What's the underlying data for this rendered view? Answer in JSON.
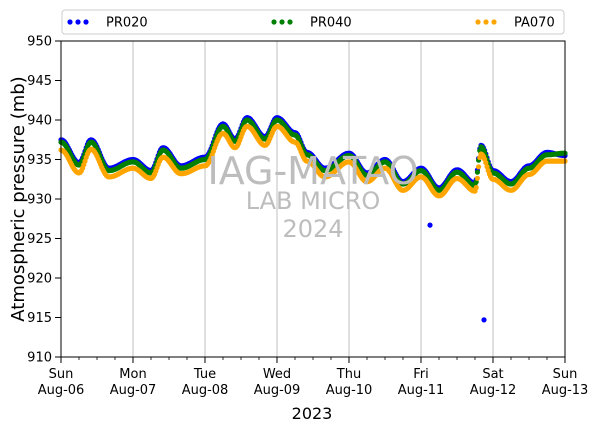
{
  "chart_data": {
    "type": "scatter",
    "xlabel": "2023",
    "ylabel": "Atmospheric pressure (mb)",
    "ylim": [
      910,
      950
    ],
    "xlim": [
      "2023-08-06",
      "2023-08-13"
    ],
    "y_ticks": [
      910,
      915,
      920,
      925,
      930,
      935,
      940,
      945,
      950
    ],
    "x_ticks": [
      {
        "day": "Sun",
        "date": "Aug-06"
      },
      {
        "day": "Mon",
        "date": "Aug-07"
      },
      {
        "day": "Tue",
        "date": "Aug-08"
      },
      {
        "day": "Wed",
        "date": "Aug-09"
      },
      {
        "day": "Thu",
        "date": "Aug-10"
      },
      {
        "day": "Fri",
        "date": "Aug-11"
      },
      {
        "day": "Sat",
        "date": "Aug-12"
      },
      {
        "day": "Sun",
        "date": "Aug-13"
      }
    ],
    "grid": "vertical",
    "legend_position": "top",
    "watermark": [
      "IAG-MATAO",
      "LAB MICRO",
      "2024"
    ],
    "series": [
      {
        "name": "PR020",
        "color": "#0000ff",
        "x": [
          "2023-08-06 00:00",
          "2023-08-06 06:00",
          "2023-08-06 10:00",
          "2023-08-06 16:00",
          "2023-08-07 00:00",
          "2023-08-07 06:00",
          "2023-08-07 10:00",
          "2023-08-07 16:00",
          "2023-08-08 00:00",
          "2023-08-08 06:00",
          "2023-08-08 10:00",
          "2023-08-08 14:00",
          "2023-08-08 20:00",
          "2023-08-09 00:00",
          "2023-08-09 06:00",
          "2023-08-09 10:00",
          "2023-08-09 16:00",
          "2023-08-10 00:00",
          "2023-08-10 06:00",
          "2023-08-10 12:00",
          "2023-08-10 18:00",
          "2023-08-11 00:00",
          "2023-08-11 06:00",
          "2023-08-11 12:00",
          "2023-08-11 18:00",
          "2023-08-11 20:00",
          "2023-08-12 00:00",
          "2023-08-12 06:00",
          "2023-08-12 12:00",
          "2023-08-12 18:00",
          "2023-08-13 00:00"
        ],
        "y": [
          937.5,
          934.6,
          937.5,
          933.9,
          935.0,
          933.6,
          936.5,
          934.2,
          935.3,
          939.5,
          937.6,
          940.3,
          937.9,
          940.3,
          938.4,
          935.9,
          933.9,
          935.8,
          933.3,
          935.0,
          932.2,
          933.9,
          931.4,
          933.7,
          932.0,
          936.8,
          933.6,
          932.2,
          934.2,
          935.9,
          935.5
        ],
        "outliers": [
          {
            "x": "2023-08-11 03:00",
            "y": 926.7
          },
          {
            "x": "2023-08-11 21:00",
            "y": 914.7
          }
        ]
      },
      {
        "name": "PR040",
        "color": "#008000",
        "x": [
          "2023-08-06 00:00",
          "2023-08-06 06:00",
          "2023-08-06 10:00",
          "2023-08-06 16:00",
          "2023-08-07 00:00",
          "2023-08-07 06:00",
          "2023-08-07 10:00",
          "2023-08-07 16:00",
          "2023-08-08 00:00",
          "2023-08-08 06:00",
          "2023-08-08 10:00",
          "2023-08-08 14:00",
          "2023-08-08 20:00",
          "2023-08-09 00:00",
          "2023-08-09 06:00",
          "2023-08-09 10:00",
          "2023-08-09 16:00",
          "2023-08-10 00:00",
          "2023-08-10 06:00",
          "2023-08-10 12:00",
          "2023-08-10 18:00",
          "2023-08-11 00:00",
          "2023-08-11 06:00",
          "2023-08-11 12:00",
          "2023-08-11 18:00",
          "2023-08-11 20:00",
          "2023-08-12 00:00",
          "2023-08-12 06:00",
          "2023-08-12 12:00",
          "2023-08-12 18:00",
          "2023-08-13 00:00"
        ],
        "y": [
          937.2,
          934.3,
          937.2,
          933.6,
          934.7,
          933.3,
          936.2,
          933.9,
          935.0,
          939.2,
          937.3,
          940.0,
          937.6,
          940.0,
          938.1,
          935.6,
          933.6,
          935.5,
          933.0,
          934.7,
          931.9,
          933.6,
          931.1,
          933.4,
          931.7,
          936.6,
          933.3,
          931.9,
          933.9,
          935.6,
          935.8
        ]
      },
      {
        "name": "PA070",
        "color": "#ffa500",
        "x": [
          "2023-08-06 00:00",
          "2023-08-06 06:00",
          "2023-08-06 10:00",
          "2023-08-06 16:00",
          "2023-08-07 00:00",
          "2023-08-07 06:00",
          "2023-08-07 10:00",
          "2023-08-07 16:00",
          "2023-08-08 00:00",
          "2023-08-08 06:00",
          "2023-08-08 10:00",
          "2023-08-08 14:00",
          "2023-08-08 20:00",
          "2023-08-09 00:00",
          "2023-08-09 06:00",
          "2023-08-09 10:00",
          "2023-08-09 16:00",
          "2023-08-10 00:00",
          "2023-08-10 06:00",
          "2023-08-10 12:00",
          "2023-08-10 18:00",
          "2023-08-11 00:00",
          "2023-08-11 06:00",
          "2023-08-11 12:00",
          "2023-08-11 18:00",
          "2023-08-11 20:00",
          "2023-08-12 00:00",
          "2023-08-12 06:00",
          "2023-08-12 12:00",
          "2023-08-12 18:00",
          "2023-08-13 00:00"
        ],
        "y": [
          936.2,
          933.3,
          936.3,
          932.8,
          933.9,
          932.6,
          935.3,
          933.2,
          934.2,
          938.3,
          936.5,
          939.2,
          936.8,
          939.2,
          937.2,
          934.8,
          932.8,
          934.7,
          932.2,
          933.9,
          931.1,
          932.8,
          930.4,
          932.6,
          931.0,
          935.7,
          932.5,
          931.1,
          933.1,
          934.8,
          934.8
        ]
      }
    ]
  }
}
